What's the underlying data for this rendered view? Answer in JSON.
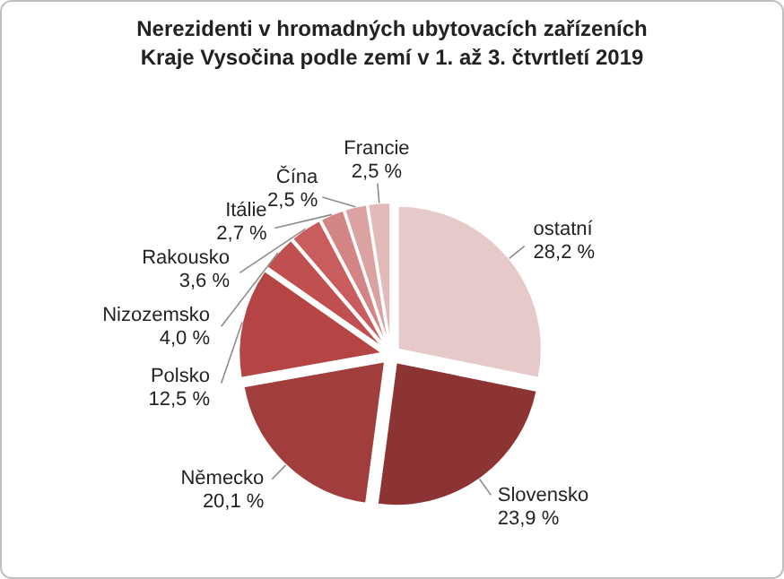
{
  "chart_data": {
    "type": "pie",
    "title": "Nerezidenti v hromadných ubytovacích zařízeních\nKraje Vysočina podle zemí v 1. až 3. čtvrtletí 2019",
    "categories": [
      "ostatní",
      "Slovensko",
      "Německo",
      "Polsko",
      "Nizozemsko",
      "Rakousko",
      "Itálie",
      "Čína",
      "Francie"
    ],
    "values": [
      28.2,
      23.9,
      20.1,
      12.5,
      4.0,
      3.6,
      2.7,
      2.5,
      2.5
    ],
    "value_labels": [
      "28,2 %",
      "23,9 %",
      "20,1 %",
      "12,5 %",
      "4,0 %",
      "3,6 %",
      "2,7 %",
      "2,5 %",
      "2,5 %"
    ],
    "colors": [
      "#e6c9c9",
      "#8c3333",
      "#a13d3d",
      "#b54545",
      "#c04f4f",
      "#c95d5d",
      "#d38585",
      "#dca2a2",
      "#e3baba"
    ]
  }
}
